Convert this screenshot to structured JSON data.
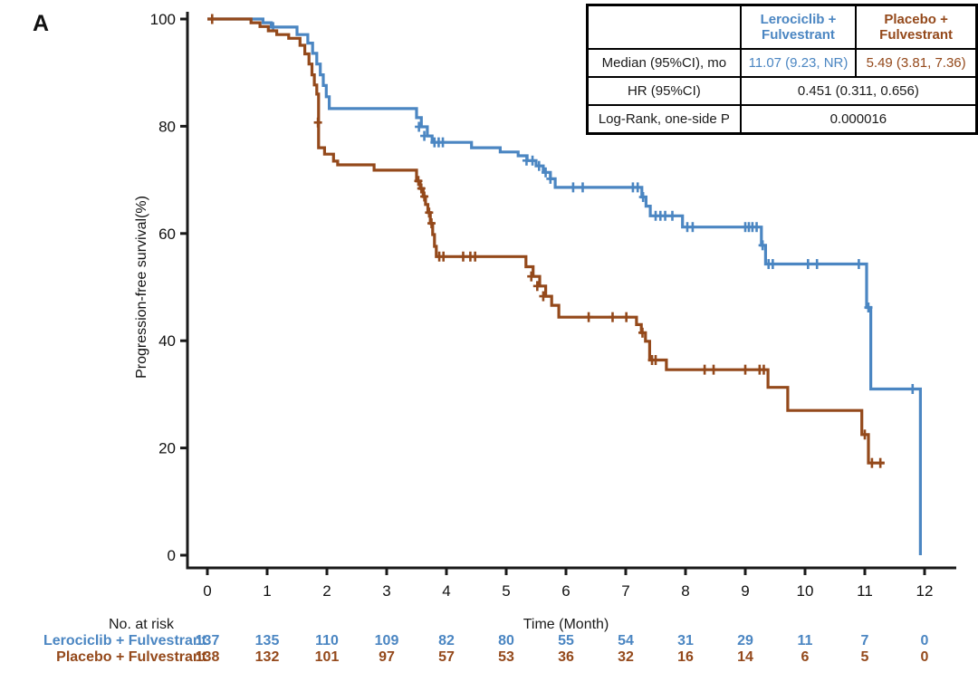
{
  "panel_label": "A",
  "colors": {
    "lerociclib_blue": "#4b86c2",
    "placebo_brown": "#94491b",
    "axis": "#1a1a1a"
  },
  "stats_table": {
    "header_blank": "",
    "header_lerociclib": "Lerociclib +\nFulvestrant",
    "header_placebo": "Placebo +\nFulvestrant",
    "median_label": "Median (95%CI), mo",
    "median_lerociclib": "11.07 (9.23, NR)",
    "median_placebo": "5.49 (3.81, 7.36)",
    "hr_label": "HR (95%CI)",
    "hr_value": "0.451 (0.311, 0.656)",
    "logrank_label": "Log-Rank, one-side P",
    "logrank_value": "0.000016"
  },
  "chart_data": {
    "type": "line",
    "subtype": "kaplan-meier-step",
    "title": "",
    "xlabel": "Time (Month)",
    "ylabel": "Progression-free survival(%)",
    "xlim": [
      0,
      12
    ],
    "ylim": [
      0,
      100
    ],
    "x_ticks": [
      0,
      1,
      2,
      3,
      4,
      5,
      6,
      7,
      8,
      9,
      10,
      11,
      12
    ],
    "y_ticks": [
      0,
      20,
      40,
      60,
      80,
      100
    ],
    "grid": false,
    "series": [
      {
        "name": "Lerociclib + Fulvestrant",
        "color": "#4b86c2",
        "steps": [
          [
            0,
            100
          ],
          [
            0.93,
            99.3
          ],
          [
            1.07,
            98.5
          ],
          [
            1.5,
            97.1
          ],
          [
            1.68,
            95.5
          ],
          [
            1.76,
            93.6
          ],
          [
            1.83,
            91.6
          ],
          [
            1.89,
            89.6
          ],
          [
            1.94,
            87.6
          ],
          [
            1.99,
            85.5
          ],
          [
            2.04,
            83.3
          ],
          [
            3.5,
            81.6
          ],
          [
            3.58,
            79.9
          ],
          [
            3.68,
            78.2
          ],
          [
            3.76,
            77.0
          ],
          [
            4.42,
            76.0
          ],
          [
            4.9,
            75.2
          ],
          [
            5.2,
            74.5
          ],
          [
            5.35,
            73.6
          ],
          [
            5.5,
            72.6
          ],
          [
            5.62,
            71.4
          ],
          [
            5.74,
            70.2
          ],
          [
            5.82,
            68.6
          ],
          [
            7.27,
            66.8
          ],
          [
            7.34,
            65.1
          ],
          [
            7.41,
            63.3
          ],
          [
            7.95,
            61.2
          ],
          [
            9.27,
            57.8
          ],
          [
            9.34,
            54.3
          ],
          [
            11.03,
            46.2
          ],
          [
            11.1,
            31.0
          ],
          [
            11.93,
            0
          ]
        ],
        "end_month": null,
        "censors": [
          [
            1.1,
            98.5
          ],
          [
            3.54,
            79.9
          ],
          [
            3.63,
            78.2
          ],
          [
            3.8,
            77.0
          ],
          [
            3.87,
            77.0
          ],
          [
            3.94,
            77.0
          ],
          [
            5.34,
            73.6
          ],
          [
            5.44,
            73.6
          ],
          [
            5.55,
            72.6
          ],
          [
            5.66,
            71.4
          ],
          [
            5.74,
            70.2
          ],
          [
            6.12,
            68.6
          ],
          [
            6.28,
            68.6
          ],
          [
            7.12,
            68.6
          ],
          [
            7.2,
            68.6
          ],
          [
            7.29,
            66.8
          ],
          [
            7.5,
            63.3
          ],
          [
            7.58,
            63.3
          ],
          [
            7.66,
            63.3
          ],
          [
            7.78,
            63.3
          ],
          [
            8.03,
            61.2
          ],
          [
            8.12,
            61.2
          ],
          [
            9.0,
            61.2
          ],
          [
            9.06,
            61.2
          ],
          [
            9.12,
            61.2
          ],
          [
            9.19,
            61.2
          ],
          [
            9.29,
            57.8
          ],
          [
            9.39,
            54.3
          ],
          [
            9.46,
            54.3
          ],
          [
            10.05,
            54.3
          ],
          [
            10.2,
            54.3
          ],
          [
            10.9,
            54.3
          ],
          [
            11.06,
            46.2
          ],
          [
            11.8,
            31.0
          ]
        ]
      },
      {
        "name": "Placebo + Fulvestrant",
        "color": "#94491b",
        "steps": [
          [
            0,
            100
          ],
          [
            0.73,
            99.3
          ],
          [
            0.88,
            98.6
          ],
          [
            1.02,
            97.8
          ],
          [
            1.16,
            97.1
          ],
          [
            1.36,
            96.4
          ],
          [
            1.55,
            95.1
          ],
          [
            1.63,
            93.5
          ],
          [
            1.7,
            91.6
          ],
          [
            1.75,
            89.6
          ],
          [
            1.79,
            87.7
          ],
          [
            1.83,
            86.0
          ],
          [
            1.86,
            76.0
          ],
          [
            1.96,
            74.8
          ],
          [
            2.11,
            73.5
          ],
          [
            2.18,
            72.8
          ],
          [
            2.79,
            71.8
          ],
          [
            3.5,
            69.8
          ],
          [
            3.56,
            68.4
          ],
          [
            3.61,
            66.9
          ],
          [
            3.65,
            65.4
          ],
          [
            3.69,
            63.9
          ],
          [
            3.73,
            61.9
          ],
          [
            3.77,
            59.8
          ],
          [
            3.8,
            57.6
          ],
          [
            3.83,
            55.7
          ],
          [
            5.33,
            53.8
          ],
          [
            5.45,
            52.0
          ],
          [
            5.56,
            50.2
          ],
          [
            5.66,
            48.3
          ],
          [
            5.76,
            46.6
          ],
          [
            5.88,
            44.4
          ],
          [
            7.18,
            43.0
          ],
          [
            7.26,
            41.5
          ],
          [
            7.33,
            39.9
          ],
          [
            7.4,
            36.4
          ],
          [
            7.68,
            34.6
          ],
          [
            9.38,
            31.3
          ],
          [
            9.71,
            27.0
          ],
          [
            10.95,
            22.5
          ],
          [
            11.06,
            17.2
          ]
        ],
        "end_month": 11.33,
        "censors": [
          [
            0.08,
            100
          ],
          [
            1.85,
            80.7
          ],
          [
            3.53,
            69.8
          ],
          [
            3.58,
            68.4
          ],
          [
            3.63,
            66.9
          ],
          [
            3.71,
            63.9
          ],
          [
            3.75,
            61.9
          ],
          [
            3.88,
            55.7
          ],
          [
            3.95,
            55.7
          ],
          [
            4.28,
            55.7
          ],
          [
            4.4,
            55.7
          ],
          [
            4.48,
            55.7
          ],
          [
            5.42,
            52.0
          ],
          [
            5.52,
            50.2
          ],
          [
            5.62,
            48.3
          ],
          [
            6.38,
            44.4
          ],
          [
            6.78,
            44.4
          ],
          [
            7.01,
            44.4
          ],
          [
            7.28,
            41.5
          ],
          [
            7.44,
            36.4
          ],
          [
            7.5,
            36.4
          ],
          [
            8.32,
            34.6
          ],
          [
            8.47,
            34.6
          ],
          [
            9.0,
            34.6
          ],
          [
            9.24,
            34.6
          ],
          [
            9.31,
            34.6
          ],
          [
            11.0,
            22.5
          ],
          [
            11.12,
            17.2
          ],
          [
            11.26,
            17.2
          ]
        ]
      }
    ],
    "risk_table": {
      "title": "No. at risk",
      "time_points": [
        0,
        1,
        2,
        3,
        4,
        5,
        6,
        7,
        8,
        9,
        10,
        11,
        12
      ],
      "rows": [
        {
          "label": "Lerociclib + Fulvestrant",
          "color": "#4b86c2",
          "values": [
            137,
            135,
            110,
            109,
            82,
            80,
            55,
            54,
            31,
            29,
            11,
            7,
            0
          ]
        },
        {
          "label": "Placebo + Fulvestrant",
          "color": "#94491b",
          "values": [
            138,
            132,
            101,
            97,
            57,
            53,
            36,
            32,
            16,
            14,
            6,
            5,
            0
          ]
        }
      ]
    }
  }
}
